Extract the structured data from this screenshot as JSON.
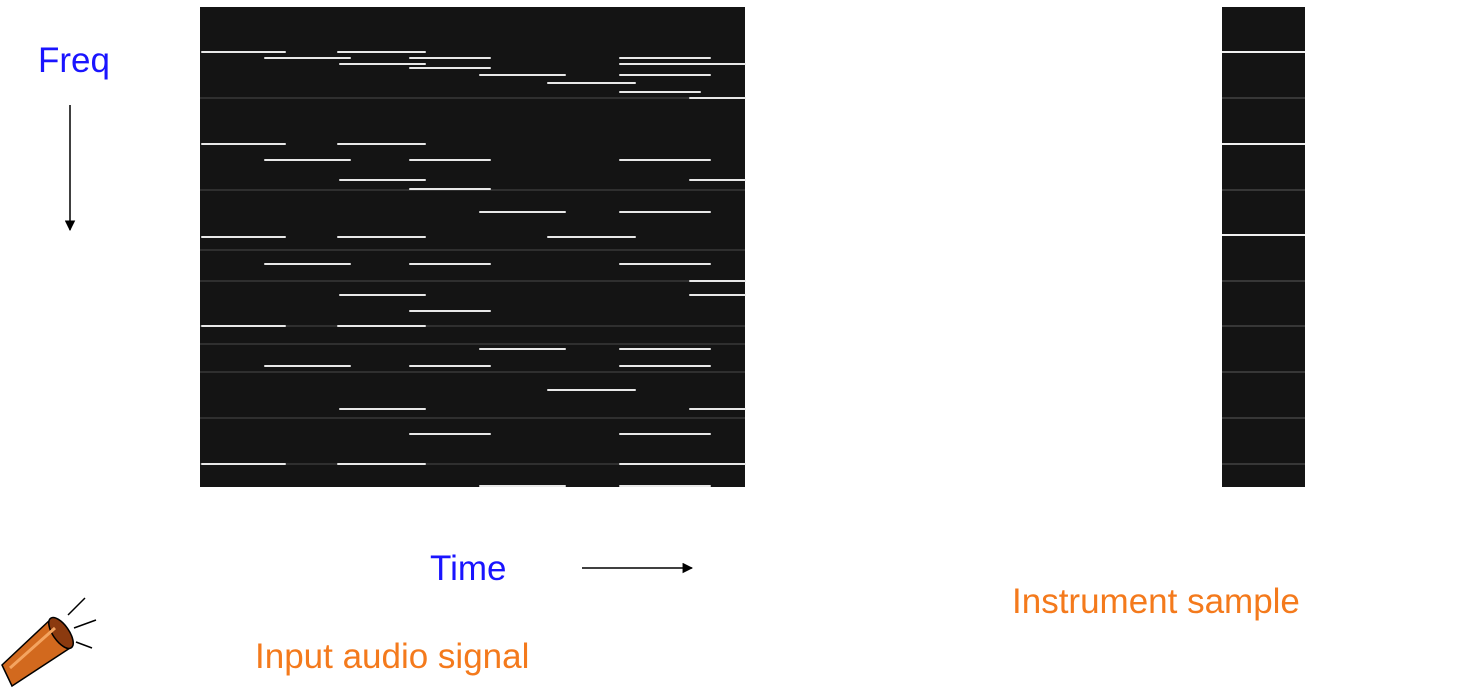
{
  "labels": {
    "freq": "Freq",
    "time": "Time",
    "input": "Input audio signal",
    "instrument": "Instrument sample"
  }
}
